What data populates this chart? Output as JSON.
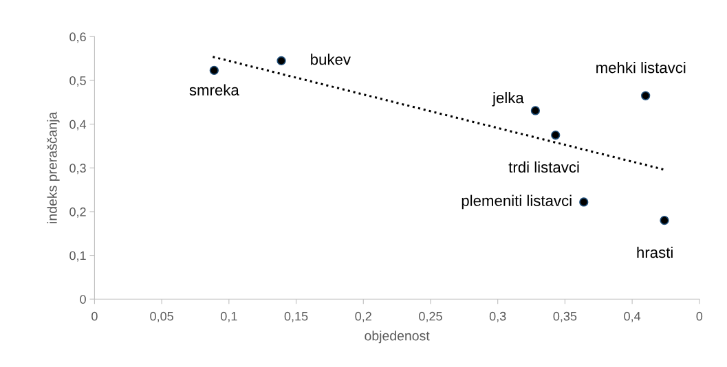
{
  "chart_data": {
    "type": "scatter",
    "xlabel": "objedenost",
    "ylabel": "indeks preraščanja",
    "xlim": [
      0,
      0.45
    ],
    "ylim": [
      0,
      0.6
    ],
    "xticks": [
      {
        "value": 0,
        "label": "0"
      },
      {
        "value": 0.05,
        "label": "0,05"
      },
      {
        "value": 0.1,
        "label": "0,1"
      },
      {
        "value": 0.15,
        "label": "0,15"
      },
      {
        "value": 0.2,
        "label": "0,2"
      },
      {
        "value": 0.25,
        "label": "0,25"
      },
      {
        "value": 0.3,
        "label": "0,3"
      },
      {
        "value": 0.35,
        "label": "0,35"
      },
      {
        "value": 0.4,
        "label": "0,4"
      },
      {
        "value": 0.45,
        "label": "0"
      }
    ],
    "yticks": [
      {
        "value": 0,
        "label": "0"
      },
      {
        "value": 0.1,
        "label": "0,1"
      },
      {
        "value": 0.2,
        "label": "0,2"
      },
      {
        "value": 0.3,
        "label": "0,3"
      },
      {
        "value": 0.4,
        "label": "0,4"
      },
      {
        "value": 0.5,
        "label": "0,5"
      },
      {
        "value": 0.6,
        "label": "0,6"
      }
    ],
    "grid": false,
    "legend": false,
    "series": [
      {
        "color": "#000000",
        "marker": "circle",
        "x": [
          0.089,
          0.139,
          0.328,
          0.343,
          0.364,
          0.41,
          0.424
        ],
        "values": [
          0.523,
          0.545,
          0.431,
          0.375,
          0.222,
          0.465,
          0.18
        ]
      },
      {
        "type": "line",
        "color": "#000000",
        "line_style": "dotted",
        "marker": "none",
        "x": [
          0.088,
          0.424
        ],
        "values": [
          0.554,
          0.296
        ]
      }
    ],
    "annotations": [
      {
        "text": "smreka",
        "x": 0.089,
        "y": 0.523
      },
      {
        "text": "bukev",
        "x": 0.139,
        "y": 0.545
      },
      {
        "text": "jelka",
        "x": 0.328,
        "y": 0.431
      },
      {
        "text": "trdi listavci",
        "x": 0.343,
        "y": 0.375
      },
      {
        "text": "plemeniti listavci",
        "x": 0.364,
        "y": 0.222
      },
      {
        "text": "mehki listavci",
        "x": 0.41,
        "y": 0.465
      },
      {
        "text": "hrasti",
        "x": 0.424,
        "y": 0.18
      }
    ]
  }
}
